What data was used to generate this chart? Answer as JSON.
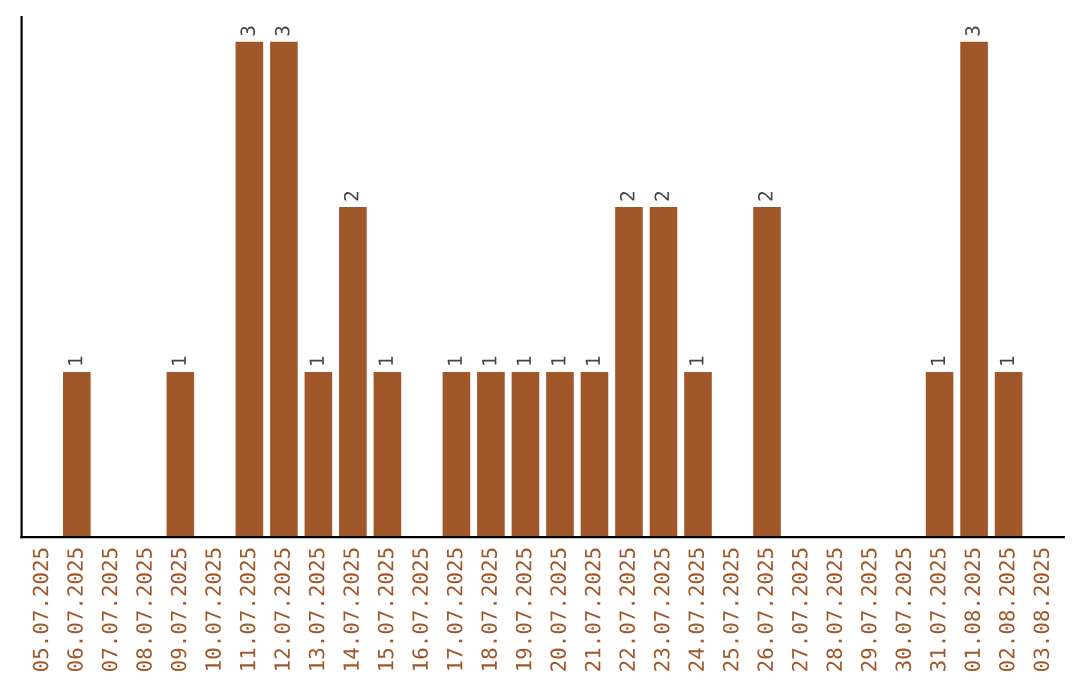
{
  "chart_data": {
    "type": "bar",
    "categories": [
      "05.07.2025",
      "06.07.2025",
      "07.07.2025",
      "08.07.2025",
      "09.07.2025",
      "10.07.2025",
      "11.07.2025",
      "12.07.2025",
      "13.07.2025",
      "14.07.2025",
      "15.07.2025",
      "16.07.2025",
      "17.07.2025",
      "18.07.2025",
      "19.07.2025",
      "20.07.2025",
      "21.07.2025",
      "22.07.2025",
      "23.07.2025",
      "24.07.2025",
      "25.07.2025",
      "26.07.2025",
      "27.07.2025",
      "28.07.2025",
      "29.07.2025",
      "30.07.2025",
      "31.07.2025",
      "01.08.2025",
      "02.08.2025",
      "03.08.2025"
    ],
    "values": [
      0,
      1,
      0,
      0,
      1,
      0,
      3,
      3,
      1,
      2,
      1,
      0,
      1,
      1,
      1,
      1,
      1,
      2,
      2,
      1,
      0,
      2,
      0,
      0,
      0,
      0,
      1,
      3,
      1,
      0
    ],
    "value_labels": [
      null,
      "1",
      null,
      null,
      "1",
      null,
      "3",
      "3",
      "1",
      "2",
      "1",
      null,
      "1",
      "1",
      "1",
      "1",
      "1",
      "2",
      "2",
      "1",
      null,
      "2",
      null,
      null,
      null,
      null,
      "1",
      "3",
      "1",
      null
    ],
    "color": "#a0572a",
    "ylim": [
      0,
      3.15
    ],
    "tick_labels": "x",
    "grid": false,
    "legend": false
  }
}
